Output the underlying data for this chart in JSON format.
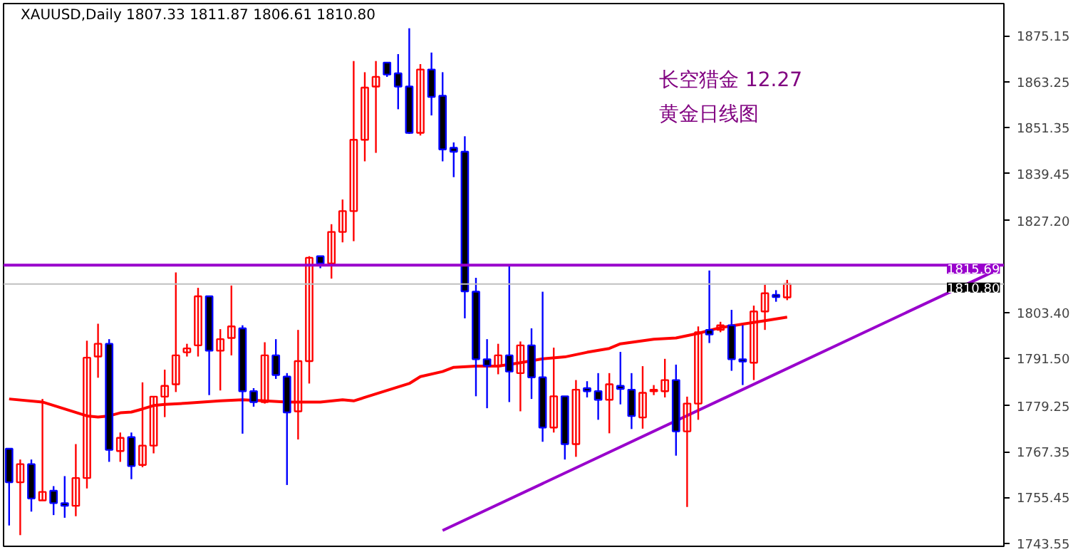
{
  "chart_data": {
    "type": "candlestick",
    "title": "XAUUSD,Daily  1807.33 1811.87 1806.61 1810.80",
    "annotations": [
      "长空猎金  12.27",
      "黄金日线图"
    ],
    "categories": [
      null,
      null,
      null,
      null,
      null,
      null,
      null,
      null,
      null,
      null,
      null,
      null,
      null,
      null,
      null,
      null,
      null,
      null,
      null,
      null,
      null,
      null,
      null,
      null,
      null,
      null,
      null,
      null,
      null,
      null,
      null,
      null,
      null,
      null,
      null,
      null,
      null,
      null,
      null,
      null,
      null,
      null,
      null,
      null,
      null,
      null,
      null,
      null,
      null,
      null,
      null,
      null,
      null,
      null,
      null,
      null,
      null,
      null,
      null,
      null,
      null,
      null,
      null,
      null,
      null,
      null,
      null,
      null,
      null,
      null,
      null,
      null,
      null,
      null,
      null,
      null,
      null,
      null,
      null,
      null,
      null,
      null,
      null,
      null,
      null,
      null,
      null,
      null,
      null,
      null
    ],
    "ohlc": [
      [
        1768.1,
        1768.1,
        1748.2,
        1759.4
      ],
      [
        1759.4,
        1765.3,
        1745.7,
        1764.1
      ],
      [
        1764.1,
        1765.3,
        1751.8,
        1755.2
      ],
      [
        1754.7,
        1781.0,
        1754.7,
        1756.9
      ],
      [
        1757.2,
        1758.4,
        1750.9,
        1754.0
      ],
      [
        1754.0,
        1761.0,
        1750.2,
        1753.3
      ],
      [
        1753.3,
        1769.3,
        1750.6,
        1760.5
      ],
      [
        1760.5,
        1796.1,
        1757.8,
        1791.7
      ],
      [
        1792.0,
        1800.5,
        1786.5,
        1795.3
      ],
      [
        1795.3,
        1796.5,
        1764.7,
        1767.8
      ],
      [
        1767.5,
        1772.3,
        1764.7,
        1770.9
      ],
      [
        1771.1,
        1772.3,
        1760.2,
        1763.6
      ],
      [
        1763.9,
        1785.3,
        1763.3,
        1768.9
      ],
      [
        1768.9,
        1781.6,
        1766.9,
        1781.6
      ],
      [
        1781.6,
        1788.6,
        1776.3,
        1784.4
      ],
      [
        1784.8,
        1813.8,
        1782.8,
        1792.3
      ],
      [
        1793.1,
        1795.3,
        1792.0,
        1794.1
      ],
      [
        1794.9,
        1809.8,
        1792.0,
        1807.6
      ],
      [
        1807.6,
        1807.6,
        1782.0,
        1793.5
      ],
      [
        1793.5,
        1799.1,
        1783.2,
        1796.5
      ],
      [
        1796.8,
        1810.4,
        1792.3,
        1799.8
      ],
      [
        1799.3,
        1800.1,
        1772.0,
        1783.0
      ],
      [
        1783.0,
        1783.8,
        1779.0,
        1780.2
      ],
      [
        1780.2,
        1795.7,
        1779.8,
        1792.3
      ],
      [
        1792.3,
        1796.5,
        1786.2,
        1787.2
      ],
      [
        1786.8,
        1787.7,
        1758.7,
        1777.5
      ],
      [
        1777.8,
        1798.9,
        1770.5,
        1790.8
      ],
      [
        1790.8,
        1818.0,
        1785.0,
        1817.6
      ],
      [
        1818.0,
        1818.0,
        1814.9,
        1816.1
      ],
      [
        1816.1,
        1826.3,
        1812.2,
        1824.3
      ],
      [
        1824.3,
        1832.7,
        1821.6,
        1829.7
      ],
      [
        1829.7,
        1868.6,
        1821.9,
        1848.2
      ],
      [
        1848.2,
        1865.7,
        1842.6,
        1861.7
      ],
      [
        1862.0,
        1868.6,
        1844.8,
        1864.5
      ],
      [
        1868.2,
        1868.2,
        1864.5,
        1865.1
      ],
      [
        1865.4,
        1870.4,
        1856.1,
        1862.0
      ],
      [
        1862.0,
        1877.1,
        1849.7,
        1850.0
      ],
      [
        1850.0,
        1867.8,
        1849.3,
        1866.4
      ],
      [
        1866.4,
        1870.8,
        1854.5,
        1859.3
      ],
      [
        1859.6,
        1865.7,
        1842.6,
        1845.7
      ],
      [
        1846.1,
        1847.5,
        1838.5,
        1845.1
      ],
      [
        1845.1,
        1849.1,
        1801.9,
        1808.9
      ],
      [
        1808.8,
        1812.4,
        1781.7,
        1791.3
      ],
      [
        1791.3,
        1796.5,
        1778.6,
        1789.6
      ],
      [
        1789.5,
        1795.3,
        1787.4,
        1792.3
      ],
      [
        1792.3,
        1815.5,
        1780.2,
        1788.1
      ],
      [
        1787.7,
        1795.9,
        1777.8,
        1794.9
      ],
      [
        1794.9,
        1799.3,
        1781.0,
        1786.6
      ],
      [
        1786.6,
        1808.8,
        1769.9,
        1773.6
      ],
      [
        1773.6,
        1794.3,
        1772.3,
        1781.7
      ],
      [
        1781.7,
        1781.7,
        1765.3,
        1769.3
      ],
      [
        1769.3,
        1785.9,
        1766.0,
        1783.4
      ],
      [
        1783.8,
        1785.6,
        1781.4,
        1783.0
      ],
      [
        1783.0,
        1787.7,
        1775.6,
        1780.8
      ],
      [
        1780.8,
        1787.7,
        1772.1,
        1784.8
      ],
      [
        1784.4,
        1793.2,
        1779.6,
        1783.6
      ],
      [
        1783.4,
        1787.7,
        1773.2,
        1776.6
      ],
      [
        1776.2,
        1789.5,
        1773.3,
        1782.6
      ],
      [
        1783.0,
        1784.6,
        1782.0,
        1783.4
      ],
      [
        1783.0,
        1791.4,
        1781.4,
        1785.9
      ],
      [
        1785.9,
        1789.9,
        1766.3,
        1772.6
      ],
      [
        1772.6,
        1781.6,
        1753.0,
        1779.8
      ],
      [
        1779.8,
        1799.8,
        1775.6,
        1798.3
      ],
      [
        1798.9,
        1814.3,
        1795.5,
        1797.7
      ],
      [
        1798.9,
        1801.0,
        1798.3,
        1800.1
      ],
      [
        1800.1,
        1804.1,
        1788.3,
        1791.3
      ],
      [
        1791.3,
        1800.1,
        1784.6,
        1790.7
      ],
      [
        1790.4,
        1805.2,
        1785.9,
        1803.7
      ],
      [
        1803.7,
        1810.6,
        1798.9,
        1808.4
      ],
      [
        1808.0,
        1809.2,
        1806.2,
        1807.4
      ],
      [
        1807.33,
        1811.87,
        1806.61,
        1810.8
      ],
      null,
      null,
      null,
      null,
      null,
      null,
      null,
      null,
      null,
      null,
      null,
      null,
      null,
      null,
      null,
      null,
      null,
      null,
      null
    ],
    "series": [
      {
        "type": "line",
        "color": "#ff0000",
        "values": [
          1781.0,
          null,
          null,
          1780.2,
          null,
          1778.4,
          null,
          1776.6,
          1776.3,
          1776.6,
          1777.4,
          1777.6,
          1778.4,
          1779.3,
          1779.6,
          null,
          1779.9,
          null,
          null,
          1780.5,
          null,
          1780.8,
          null,
          1780.5,
          null,
          1780.2,
          null,
          null,
          1780.2,
          null,
          1780.8,
          1780.5,
          1781.4,
          null,
          1783.2,
          null,
          1785.0,
          1786.8,
          null,
          1788.1,
          1789.2,
          null,
          1789.5,
          null,
          1789.5,
          null,
          1790.4,
          null,
          1791.4,
          null,
          1791.9,
          null,
          1793.1,
          null,
          1794.1,
          1795.3,
          null,
          null,
          1796.5,
          null,
          1796.8,
          null,
          1798.0,
          null,
          1799.5,
          null,
          1800.4,
          null,
          1801.3,
          null,
          1802.2,
          null,
          null,
          null,
          null,
          null,
          null,
          null,
          null,
          null,
          null,
          null,
          null,
          null,
          null,
          null,
          null,
          null,
          null,
          null
        ]
      },
      {
        "type": "line",
        "color": "#9900cc",
        "values": [
          null,
          null,
          null,
          null,
          null,
          null,
          null,
          null,
          null,
          null,
          null,
          null,
          null,
          null,
          null,
          null,
          null,
          null,
          null,
          null,
          null,
          null,
          null,
          null,
          null,
          null,
          null,
          null,
          null,
          null,
          null,
          null,
          null,
          null,
          null,
          null,
          null,
          null,
          null,
          1746.9,
          null,
          null,
          null,
          null,
          null,
          null,
          null,
          null,
          null,
          null,
          null,
          null,
          null,
          null,
          null,
          null,
          null,
          null,
          null,
          null,
          null,
          null,
          null,
          null,
          null,
          null,
          null,
          null,
          null,
          null,
          null,
          null,
          null,
          null,
          null,
          null,
          null,
          null,
          null,
          null,
          null,
          null,
          null,
          null,
          null,
          null,
          null,
          null,
          null,
          1814.6
        ]
      }
    ],
    "ylim": [
      1742.8,
      1883.5
    ],
    "yticks": [
      {
        "value": 1875.15,
        "label": "1875.15"
      },
      {
        "value": 1863.25,
        "label": "1863.25"
      },
      {
        "value": 1851.35,
        "label": "1851.35"
      },
      {
        "value": 1839.45,
        "label": "1839.45"
      },
      {
        "value": 1827.2,
        "label": "1827.20"
      },
      {
        "value": 1803.4,
        "label": "1803.40"
      },
      {
        "value": 1791.5,
        "label": "1791.50"
      },
      {
        "value": 1779.25,
        "label": "1779.25"
      },
      {
        "value": 1767.35,
        "label": "1767.35"
      },
      {
        "value": 1755.45,
        "label": "1755.45"
      },
      {
        "value": 1743.55,
        "label": "1743.55"
      }
    ],
    "ref_lines": [
      {
        "axis": "y",
        "value": 1815.69,
        "label": "1815.69",
        "color": "#9900cc"
      },
      {
        "axis": "y",
        "value": 1810.8,
        "label": "1810.80",
        "color": "#c0c0c0"
      }
    ],
    "tick_labels": "y"
  }
}
